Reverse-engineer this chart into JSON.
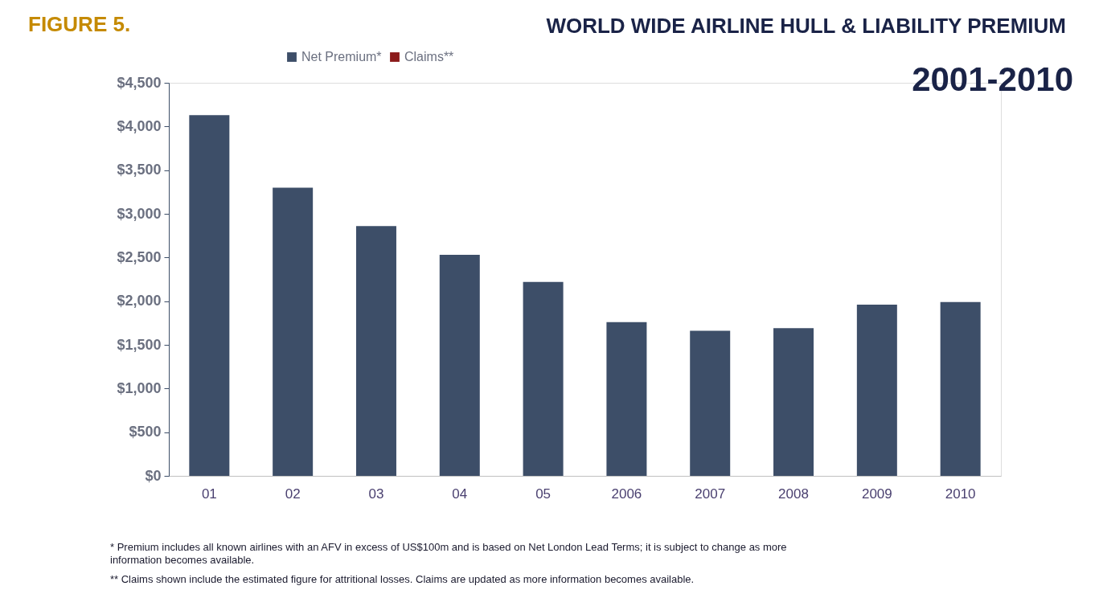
{
  "chart_data": {
    "type": "bar",
    "title": "WORLD WIDE AIRLINE HULL & LIABILITY PREMIUM",
    "subtitle": "2001-2010",
    "categories": [
      "01",
      "02",
      "03",
      "04",
      "05",
      "2006",
      "2007",
      "2008",
      "2009",
      "2010"
    ],
    "series": [
      {
        "name": "Net Premium*",
        "color": "#3d4e68",
        "values": [
          4130,
          3300,
          2860,
          2530,
          2220,
          1760,
          1660,
          1690,
          1960,
          1990
        ]
      },
      {
        "name": "Claims**",
        "color": "#8b1a1a",
        "values": [
          null,
          null,
          null,
          null,
          null,
          null,
          null,
          null,
          null,
          null
        ]
      }
    ],
    "ylim": [
      0,
      4500
    ],
    "yticks": [
      {
        "value": 0,
        "label": "$0"
      },
      {
        "value": 500,
        "label": "$500"
      },
      {
        "value": 1000,
        "label": "$1,000"
      },
      {
        "value": 1500,
        "label": "$1,500"
      },
      {
        "value": 2000,
        "label": "$2,000"
      },
      {
        "value": 2500,
        "label": "$2,500"
      },
      {
        "value": 3000,
        "label": "$3,000"
      },
      {
        "value": 3500,
        "label": "$3,500"
      },
      {
        "value": 4000,
        "label": "$4,000"
      },
      {
        "value": 4500,
        "label": "$4,500"
      }
    ],
    "grid": false,
    "legend": "top",
    "annotations": [
      "FIGURE 5.",
      "* Premium includes all known airlines with an AFV in excess of US$100m and is based on Net London Lead Terms; it is subject to change as more information becomes available.",
      "** Claims shown include the estimated figure for attritional losses. Claims are updated as more information becomes available."
    ]
  }
}
